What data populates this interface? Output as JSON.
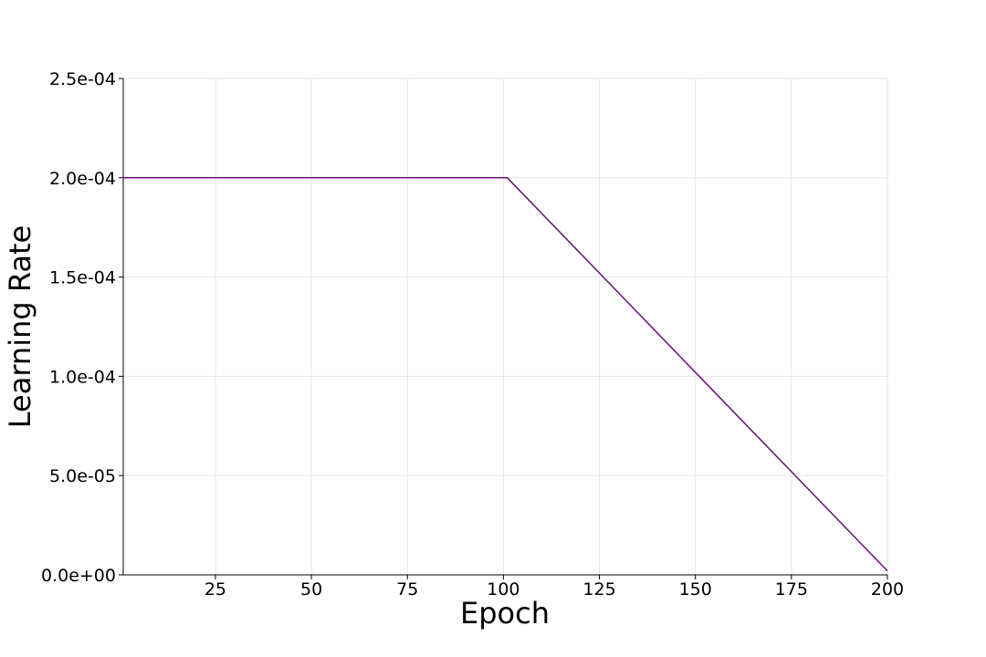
{
  "chart_data": {
    "type": "line",
    "title": "",
    "xlabel": "Epoch",
    "ylabel": "Learning Rate",
    "xlim": [
      1,
      200
    ],
    "ylim": [
      0,
      0.00025
    ],
    "x_ticks": [
      25,
      50,
      75,
      100,
      125,
      150,
      175,
      200
    ],
    "x_tick_labels": [
      "25",
      "50",
      "75",
      "100",
      "125",
      "150",
      "175",
      "200"
    ],
    "y_ticks": [
      0,
      5e-05,
      0.0001,
      0.00015,
      0.0002,
      0.00025
    ],
    "y_tick_labels": [
      "0.0e+00",
      "5.0e-05",
      "1.0e-04",
      "1.5e-04",
      "2.0e-04",
      "2.5e-04"
    ],
    "grid": true,
    "series": [
      {
        "color": "#6a0f7a",
        "x": [
          1,
          101,
          200
        ],
        "y": [
          0.0002,
          0.0002,
          2e-06
        ]
      }
    ]
  }
}
